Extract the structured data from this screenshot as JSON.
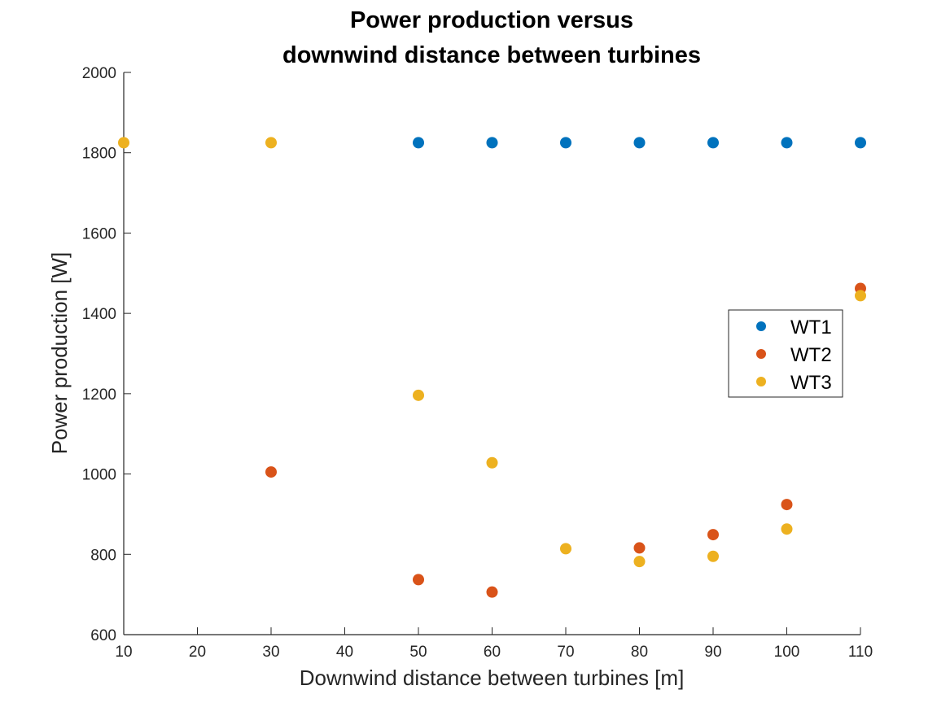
{
  "chart_data": {
    "type": "scatter",
    "title": [
      "Power production versus",
      "downwind distance between turbines"
    ],
    "xlabel": "Downwind distance between turbines  [m]",
    "ylabel": "Power production [W]",
    "xlim": [
      10,
      110
    ],
    "ylim": [
      600,
      2000
    ],
    "xticks": [
      "10",
      "20",
      "30",
      "40",
      "50",
      "60",
      "70",
      "80",
      "90",
      "100",
      "110"
    ],
    "yticks": [
      "600",
      "800",
      "1000",
      "1200",
      "1400",
      "1600",
      "1800",
      "2000"
    ],
    "grid": false,
    "legend_position": "right",
    "series": [
      {
        "name": "WT1",
        "color": "#0072BD",
        "points": [
          [
            50,
            1825
          ],
          [
            60,
            1825
          ],
          [
            70,
            1825
          ],
          [
            80,
            1825
          ],
          [
            90,
            1825
          ],
          [
            100,
            1825
          ],
          [
            110,
            1825
          ]
        ]
      },
      {
        "name": "WT2",
        "color": "#D95319",
        "points": [
          [
            30,
            1005
          ],
          [
            50,
            737
          ],
          [
            60,
            706
          ],
          [
            80,
            816
          ],
          [
            90,
            849
          ],
          [
            100,
            924
          ],
          [
            110,
            1462
          ]
        ]
      },
      {
        "name": "WT3",
        "color": "#EDB120",
        "points": [
          [
            10,
            1825
          ],
          [
            30,
            1825
          ],
          [
            50,
            1196
          ],
          [
            60,
            1028
          ],
          [
            70,
            814
          ],
          [
            80,
            782
          ],
          [
            90,
            795
          ],
          [
            100,
            863
          ],
          [
            110,
            1444
          ]
        ]
      }
    ]
  }
}
